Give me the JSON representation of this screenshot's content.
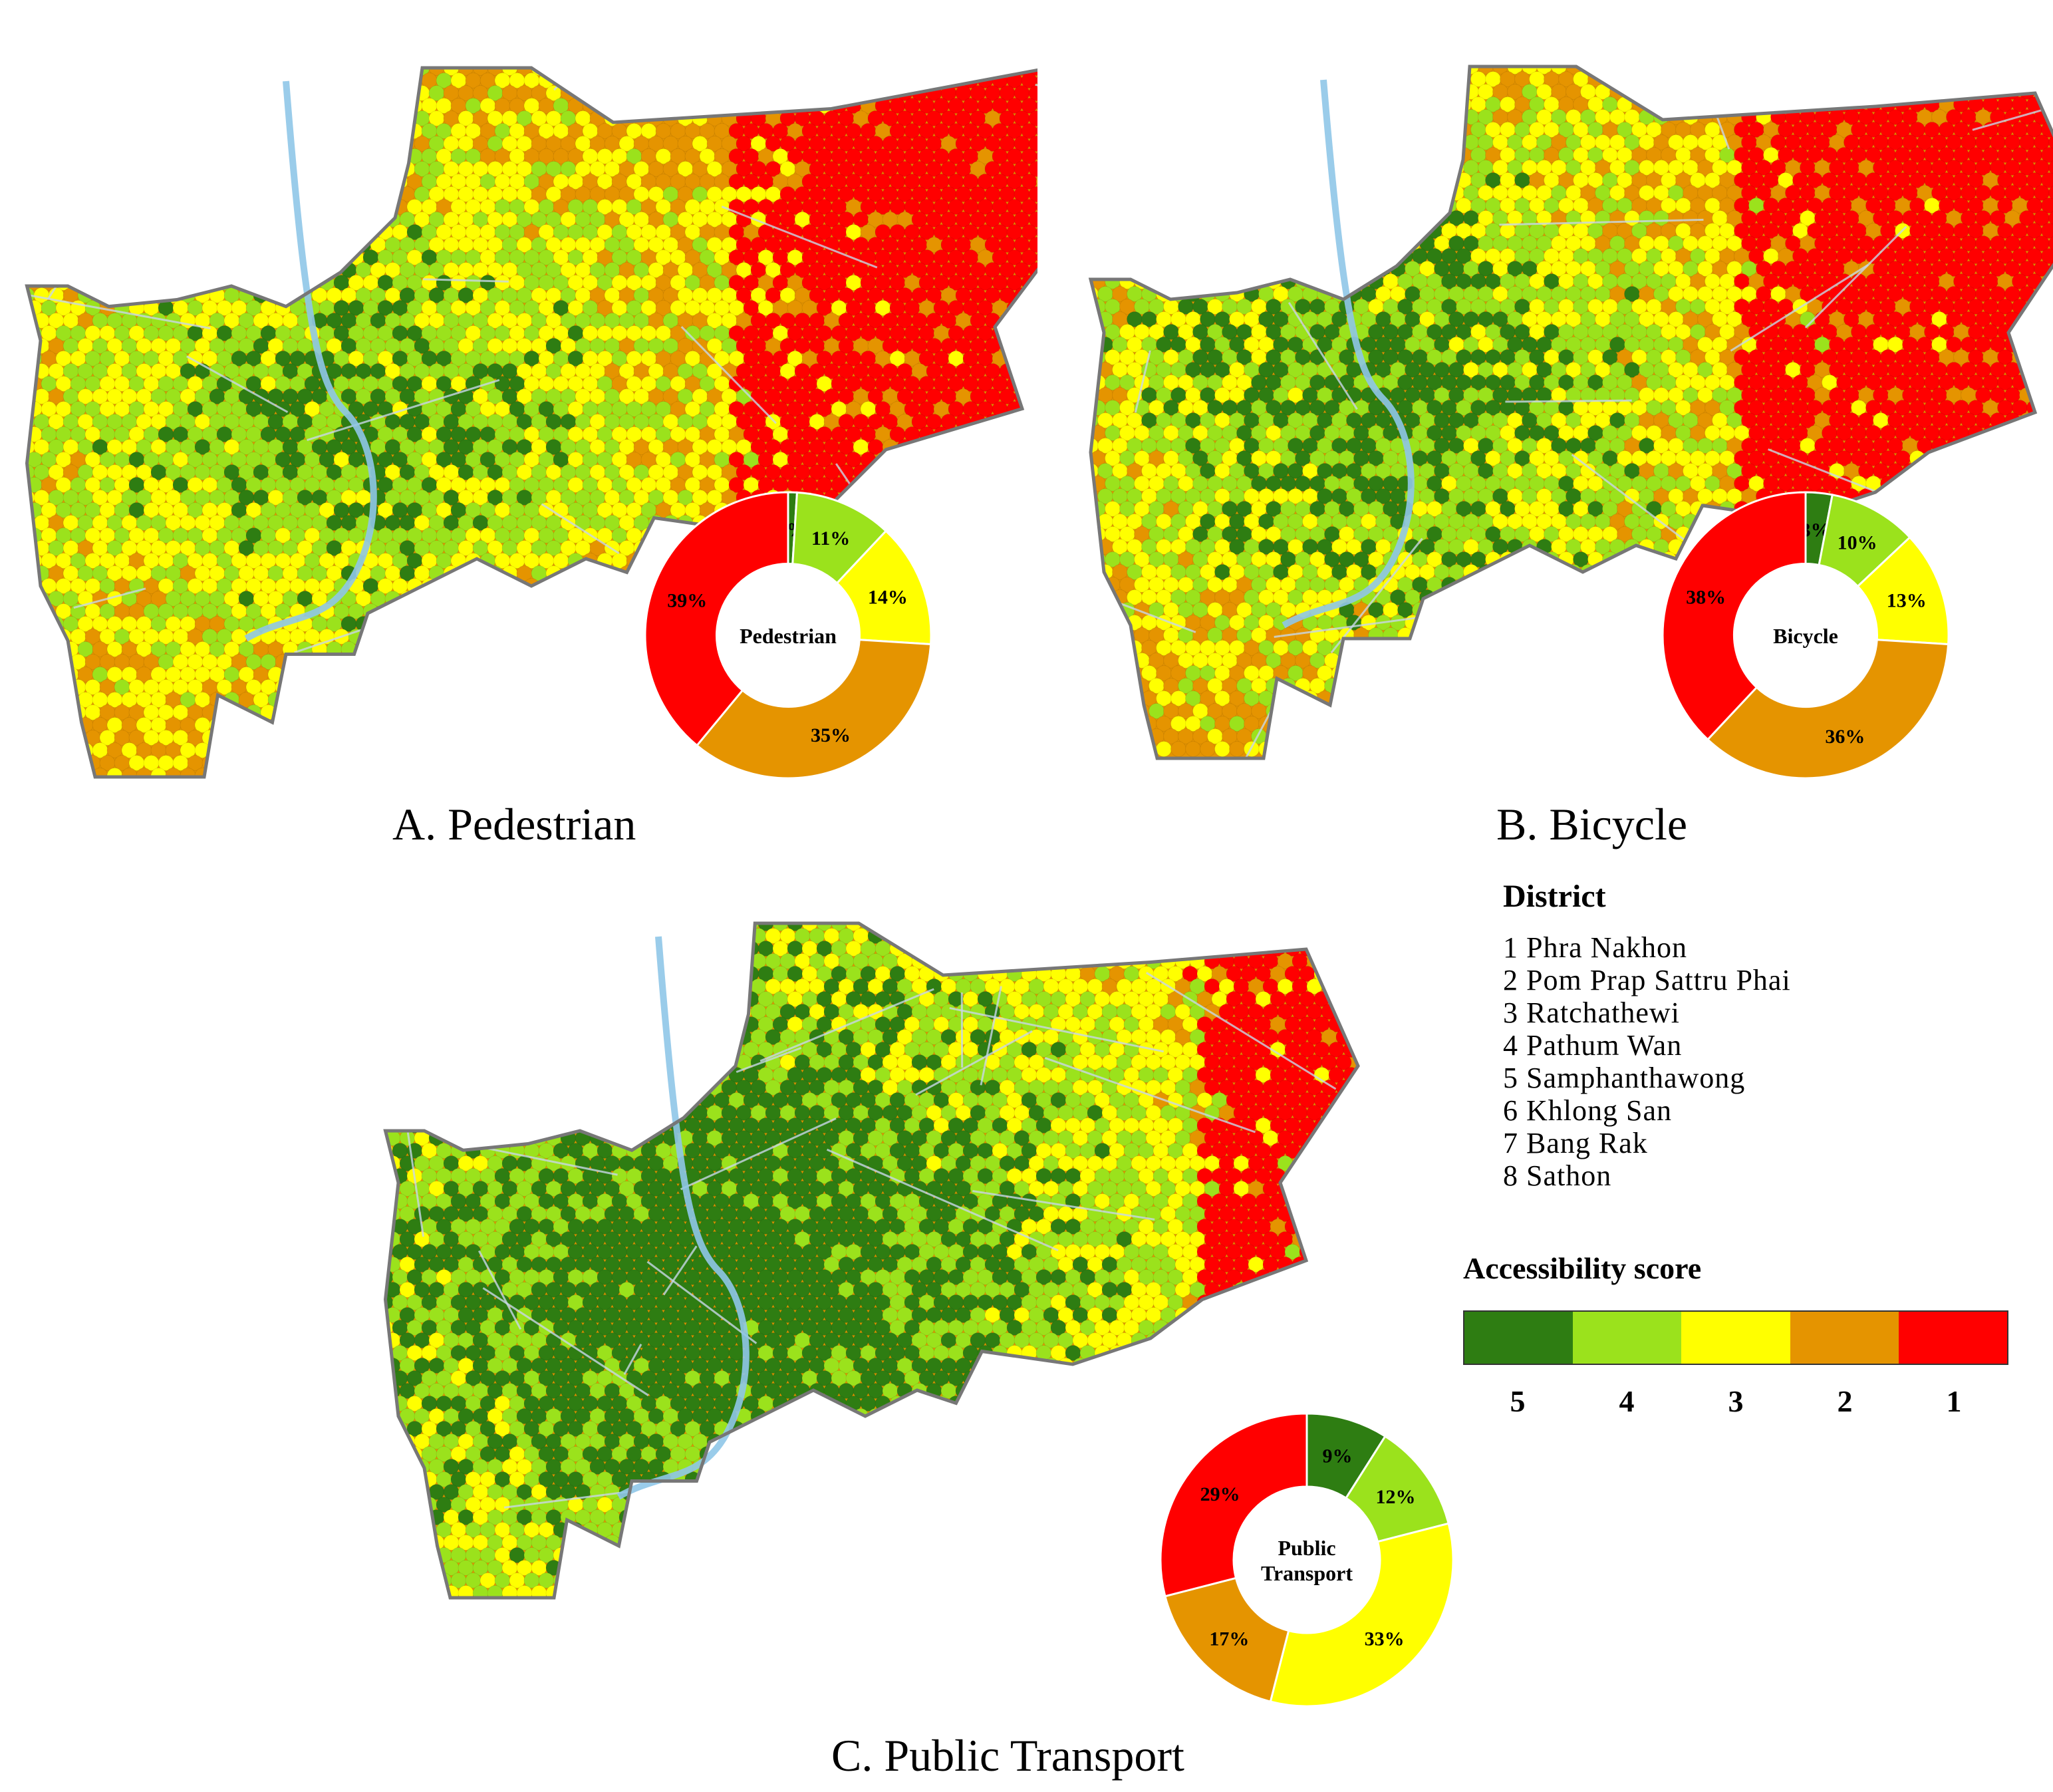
{
  "colors": {
    "score_5": "#2e7d12",
    "score_4": "#9be21c",
    "score_3": "#ffff00",
    "score_2": "#e59400",
    "score_1": "#ff0000",
    "boundary": "#777777",
    "road": "#c8d8e8"
  },
  "panels": [
    {
      "caption": "A. Pedestrian",
      "donut_label": [
        "Pedestrian"
      ],
      "chart_data": {
        "type": "pie",
        "labels": [
          "5",
          "4",
          "3",
          "2",
          "1"
        ],
        "values": [
          1,
          11,
          14,
          35,
          39
        ],
        "value_labels": [
          "1%",
          "11%",
          "14%",
          "35%",
          "39%"
        ]
      },
      "map_mix": [
        0.06,
        0.2,
        0.22,
        0.27,
        0.25
      ]
    },
    {
      "caption": "B. Bicycle",
      "donut_label": [
        "Bicycle"
      ],
      "chart_data": {
        "type": "pie",
        "labels": [
          "5",
          "4",
          "3",
          "2",
          "1"
        ],
        "values": [
          3,
          10,
          13,
          36,
          38
        ],
        "value_labels": [
          "3%",
          "10%",
          "13%",
          "36%",
          "38%"
        ]
      },
      "map_mix": [
        0.12,
        0.18,
        0.18,
        0.26,
        0.26
      ]
    },
    {
      "caption": "C. Public Transport",
      "donut_label": [
        "Public",
        "Transport"
      ],
      "chart_data": {
        "type": "pie",
        "labels": [
          "5",
          "4",
          "3",
          "2",
          "1"
        ],
        "values": [
          9,
          12,
          33,
          17,
          29
        ],
        "value_labels": [
          "9%",
          "12%",
          "33%",
          "17%",
          "29%"
        ]
      },
      "map_mix": [
        0.3,
        0.2,
        0.26,
        0.1,
        0.14
      ]
    }
  ],
  "legend": {
    "title": "District",
    "districts": [
      "1 Phra Nakhon",
      "2 Pom Prap Sattru Phai",
      "3 Ratchathewi",
      "4 Pathum Wan",
      "5 Samphanthawong",
      "6 Khlong San",
      "7 Bang Rak",
      "8 Sathon"
    ],
    "score_title": "Accessibility score",
    "score_labels": [
      "5",
      "4",
      "3",
      "2",
      "1"
    ]
  }
}
